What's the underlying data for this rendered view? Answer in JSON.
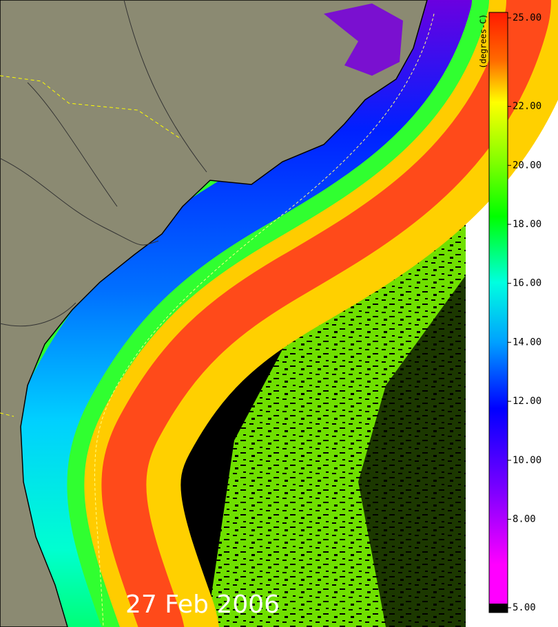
{
  "map": {
    "date": "27 Feb 2006"
  },
  "colorbar": {
    "label": "(degrees-C)",
    "lim": [
      5,
      25
    ],
    "ticks": [
      {
        "value": 25,
        "label": "25.00"
      },
      {
        "value": 22,
        "label": "22.00"
      },
      {
        "value": 20,
        "label": "20.00"
      },
      {
        "value": 18,
        "label": "18.00"
      },
      {
        "value": 16,
        "label": "16.00"
      },
      {
        "value": 14,
        "label": "14.00"
      },
      {
        "value": 12,
        "label": "12.00"
      },
      {
        "value": 10,
        "label": "10.00"
      },
      {
        "value": 8,
        "label": "8.00"
      },
      {
        "value": 5,
        "label": "5.00"
      }
    ]
  }
}
